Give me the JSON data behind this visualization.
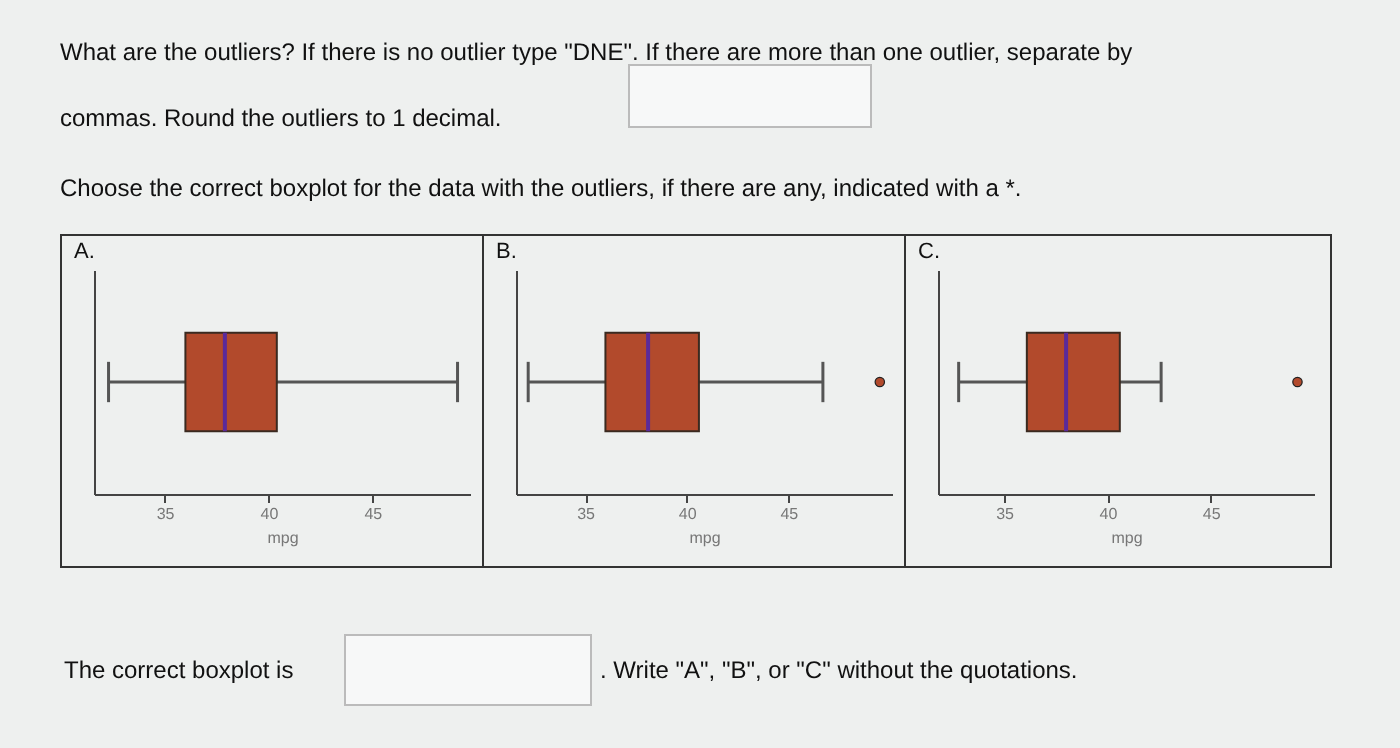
{
  "chart_data": [
    {
      "type": "other",
      "annotations": [
        "What are the outliers? If there is no outlier type \"DNE\". If there are more than one outlier, separate by commas. Round the outliers to 1 decimal.",
        "Choose the correct boxplot for the data with the outliers, if there are any, indicated with a *."
      ]
    },
    {
      "type": "box",
      "title": "A.",
      "xlabel": "mpg",
      "orientation": "horizontal",
      "categories": [
        null
      ],
      "xlim": [
        31.6,
        49.7
      ],
      "xticks": [
        35,
        40,
        45
      ],
      "grid": false,
      "marker": "circle",
      "series": [
        {
          "color": "#b24a2c",
          "boxes": [
            {
              "low": 32.3,
              "q1": 36.0,
              "median": 37.9,
              "q3": 40.4,
              "high": 49.1
            }
          ]
        }
      ]
    },
    {
      "type": "box",
      "title": "B.",
      "xlabel": "mpg",
      "orientation": "horizontal",
      "categories": [
        null
      ],
      "xlim": [
        31.6,
        50.1
      ],
      "xticks": [
        35,
        40,
        45
      ],
      "grid": false,
      "marker": "circle",
      "series": [
        {
          "color": "#b24a2c",
          "boxes": [
            {
              "low": 32.2,
              "q1": 36.0,
              "median": 38.1,
              "q3": 40.6,
              "high": 46.7,
              "outliers": [
                49.5
              ]
            }
          ]
        }
      ]
    },
    {
      "type": "box",
      "title": "C.",
      "xlabel": "mpg",
      "orientation": "horizontal",
      "categories": [
        null
      ],
      "xlim": [
        31.8,
        50.0
      ],
      "xticks": [
        35,
        40,
        45
      ],
      "grid": false,
      "marker": "circle",
      "series": [
        {
          "color": "#b24a2c",
          "boxes": [
            {
              "low": 32.8,
              "q1": 36.1,
              "median": 38.0,
              "q3": 40.6,
              "high": 42.6,
              "outliers": [
                49.2
              ]
            }
          ]
        }
      ]
    },
    {
      "type": "other",
      "annotations": [
        "The correct boxplot is",
        ". Write \"A\", \"B\", or \"C\" without the quotations."
      ]
    }
  ]
}
